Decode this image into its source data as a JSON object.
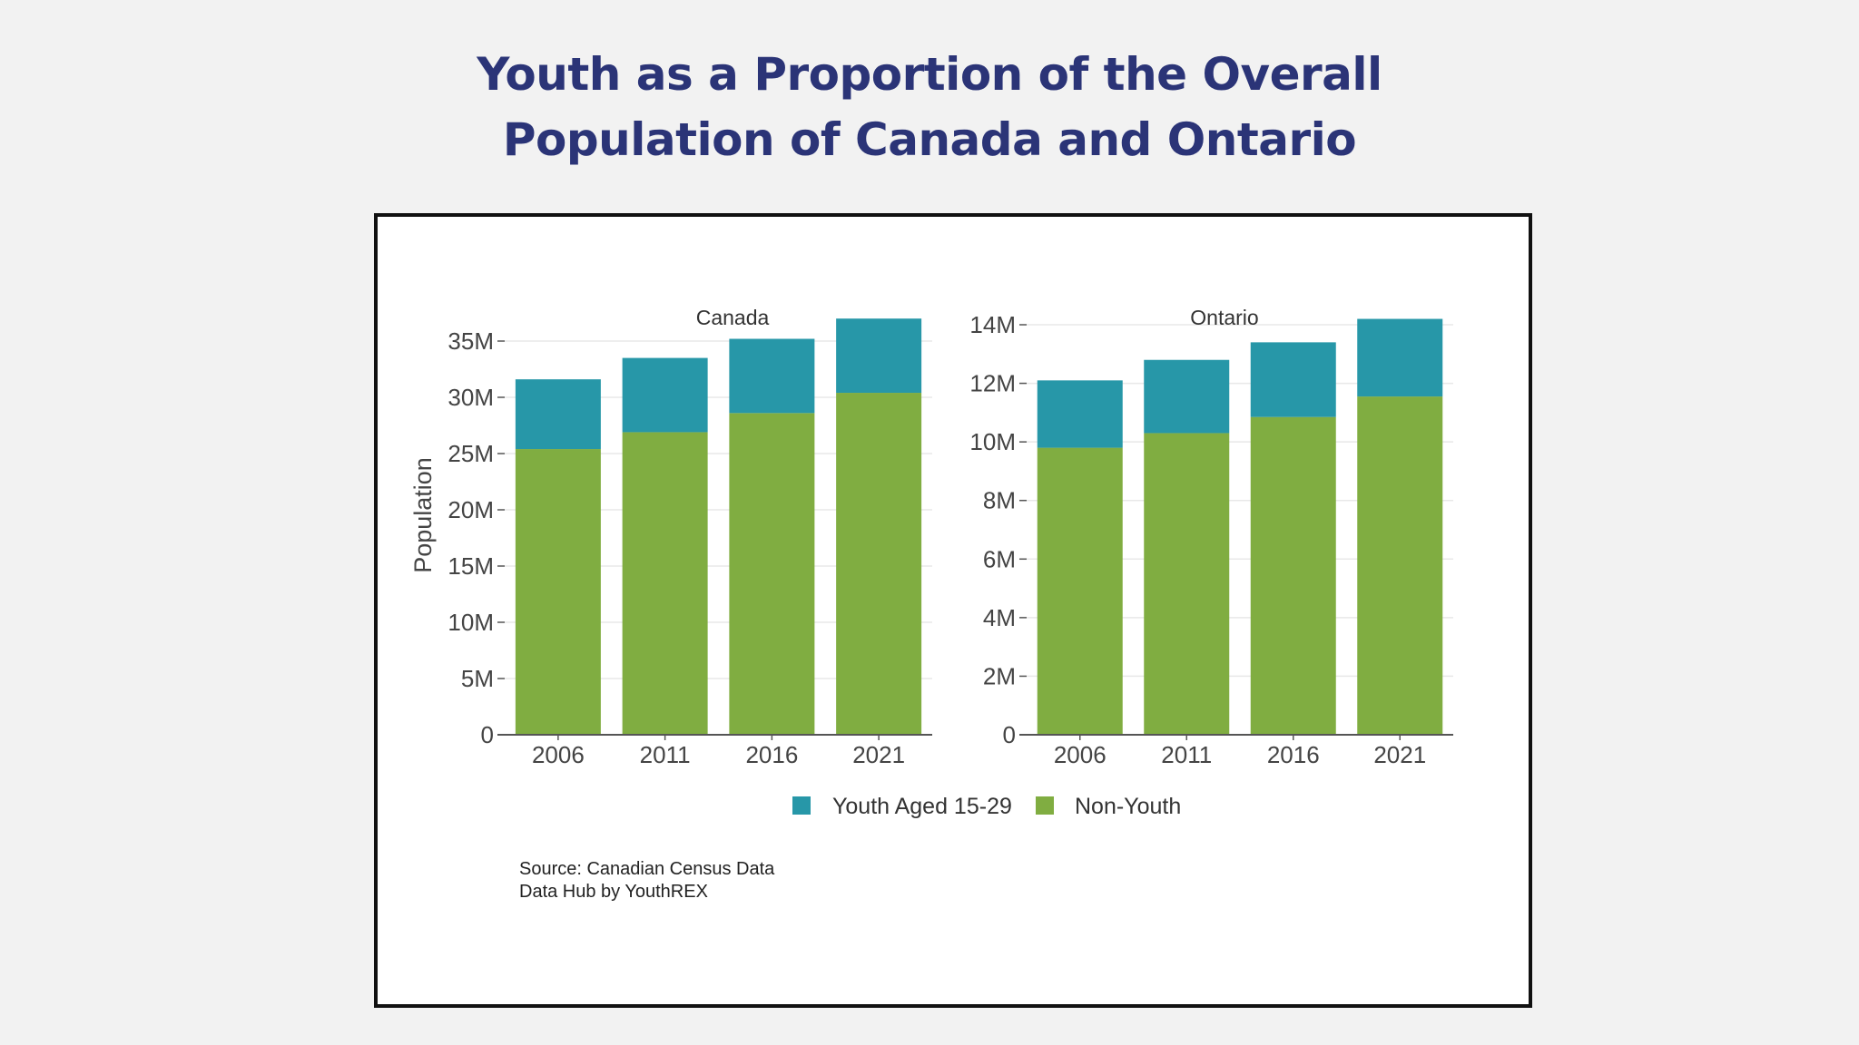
{
  "title": {
    "line1": "Youth as a Proportion of the Overall",
    "line2": "Population of Canada and Ontario"
  },
  "colors": {
    "title": "#2b3477",
    "youth": "#2797a8",
    "non_youth": "#80ad41",
    "axis_text": "#444444",
    "grid": "#e8e8e8",
    "axis_line": "#555555"
  },
  "legend": {
    "youth_label": "Youth Aged 15-29",
    "non_youth_label": "Non-Youth",
    "placement": "bottom-center"
  },
  "source": {
    "line1": "Source: Canadian Census Data",
    "line2": "Data Hub by YouthREX"
  },
  "chart_data": [
    {
      "type": "bar",
      "stacked": true,
      "title": "Canada",
      "ylabel": "Population",
      "xlabel": "",
      "categories": [
        "2006",
        "2011",
        "2016",
        "2021"
      ],
      "ylim": [
        0,
        35000000
      ],
      "yticks": [
        0,
        5000000,
        10000000,
        15000000,
        20000000,
        25000000,
        30000000,
        35000000
      ],
      "ytick_labels": [
        "0",
        "5M",
        "10M",
        "15M",
        "20M",
        "25M",
        "30M",
        "35M"
      ],
      "grid": true,
      "series": [
        {
          "name": "Non-Youth",
          "values": [
            25400000,
            26900000,
            28600000,
            30400000
          ]
        },
        {
          "name": "Youth Aged 15-29",
          "values": [
            6200000,
            6600000,
            6600000,
            6600000
          ]
        }
      ]
    },
    {
      "type": "bar",
      "stacked": true,
      "title": "Ontario",
      "ylabel": "",
      "xlabel": "",
      "categories": [
        "2006",
        "2011",
        "2016",
        "2021"
      ],
      "ylim": [
        0,
        14000000
      ],
      "yticks": [
        0,
        2000000,
        4000000,
        6000000,
        8000000,
        10000000,
        12000000,
        14000000
      ],
      "ytick_labels": [
        "0",
        "2M",
        "4M",
        "6M",
        "8M",
        "10M",
        "12M",
        "14M"
      ],
      "grid": true,
      "series": [
        {
          "name": "Non-Youth",
          "values": [
            9800000,
            10300000,
            10850000,
            11550000
          ]
        },
        {
          "name": "Youth Aged 15-29",
          "values": [
            2300000,
            2500000,
            2550000,
            2650000
          ]
        }
      ]
    }
  ]
}
